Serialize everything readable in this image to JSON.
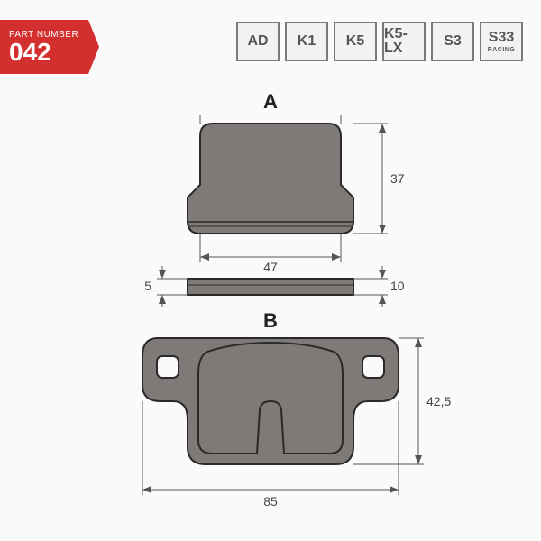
{
  "part": {
    "label": "PART NUMBER",
    "number": "042"
  },
  "badges": [
    {
      "main": "AD",
      "sub": ""
    },
    {
      "main": "K1",
      "sub": ""
    },
    {
      "main": "K5",
      "sub": ""
    },
    {
      "main": "K5-LX",
      "sub": ""
    },
    {
      "main": "S3",
      "sub": ""
    },
    {
      "main": "S33",
      "sub": "RACING"
    }
  ],
  "drawing": {
    "background": "#fafafa",
    "part_fill": "#7f7a77",
    "part_stroke": "#2a2a2a",
    "dim_line_color": "#555",
    "dim_text_color": "#444",
    "pad_a": {
      "label": "A",
      "width_mm": 47,
      "height_mm": 37,
      "thickness_mm": 5,
      "side_h_mm": 10
    },
    "pad_b": {
      "label": "B",
      "width_mm": 85,
      "height_mm": 42.5,
      "height_mm_display": "42,5"
    }
  }
}
